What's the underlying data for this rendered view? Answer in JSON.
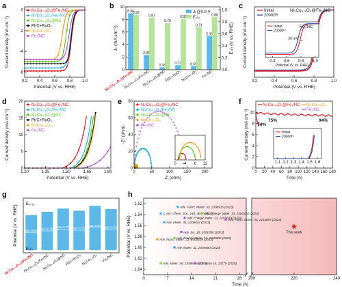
{
  "figure": {
    "panel_labels": [
      "a",
      "b",
      "c",
      "d",
      "e",
      "f",
      "g",
      "h"
    ]
  },
  "chart_data": [
    {
      "panel": "a",
      "type": "line",
      "xlabel": "Potential (V vs. RHE)",
      "ylabel": "Current density (mA cm⁻²)",
      "xlim": [
        0.2,
        1.0
      ],
      "ylim": [
        -6.5,
        0.3
      ],
      "xticks": [
        0.2,
        0.4,
        0.6,
        0.8,
        1.0
      ],
      "yticks": [
        -6,
        -4,
        -2,
        0
      ],
      "legend_position": "top-left",
      "series": [
        {
          "name": "Ni₁Co₃.₈O₄@Fe₁/NC",
          "color": "#d9141a",
          "marker": "circle",
          "onset": 0.86,
          "limit": -5.9,
          "width": 0.09
        },
        {
          "name": "Ni₁Co₃.₈O₄/Fe₁/NC",
          "color": "#1fa7e0",
          "marker": "triangle",
          "onset": 0.85,
          "limit": -5.6,
          "width": 0.09
        },
        {
          "name": "Ni₁Co₃.₈O₄@NC",
          "color": "#58c41e",
          "marker": "square",
          "onset": 0.79,
          "limit": -5.0,
          "width": 0.09
        },
        {
          "name": "Pt/C+RuO₂",
          "color": "#111111",
          "marker": "circle",
          "onset": 0.86,
          "limit": -5.2,
          "width": 0.08
        },
        {
          "name": "Ni₁Co₃.₈O₄",
          "color": "#f29a16",
          "marker": "circle",
          "onset": 0.74,
          "limit": -4.8,
          "width": 0.1
        },
        {
          "name": "Fe₁/NC",
          "color": "#b94fd6",
          "marker": "circle",
          "onset": 0.83,
          "limit": -4.8,
          "width": 0.1
        }
      ]
    },
    {
      "panel": "b",
      "type": "bar",
      "categories": [
        "Ni₁Co₃.₈O₄@Fe₁/NC",
        "Ni₁Co₃.₈O₄/Fe₁/NC",
        "Ni₁Co₃.₈O₄@NC",
        "Pt/C+RuO₂",
        "Ni₁Co₃.₈O₄",
        "Fe₁/NC"
      ],
      "series": [
        {
          "name": "Jₖ@0.9 V",
          "color": "#5bb8e8",
          "values": [
            8.96,
            2.35,
            0.38,
            0.73,
            0.56,
            5.35
          ],
          "labels": [
            "8.96",
            "2.35",
            "0.38",
            "0.73",
            "0.56",
            "5.35"
          ]
        },
        {
          "name": "E₁/₂",
          "color": "#b5e39a",
          "values": [
            0.92,
            0.87,
            0.78,
            0.85,
            0.71,
            0.88
          ],
          "labels": [
            "0.92",
            "0.87",
            "0.78",
            "0.85",
            "0.71",
            "0.88"
          ]
        }
      ],
      "ylabel_left": "Jₖ (mA cm⁻²)",
      "ylabel_right": "E₁/₂ (V vs. RHE)",
      "ylim_left": [
        0,
        10
      ],
      "ylim_right": [
        0,
        1.05
      ],
      "highlight_category_color": "#d9141a"
    },
    {
      "panel": "c",
      "type": "line",
      "title": "Ni₁Co₃.₈O₄@Fe₁/NC",
      "xlabel": "Potential (V vs. RHE)",
      "ylabel": "Current density (mA cm⁻²)",
      "xlim": [
        0.2,
        1.0
      ],
      "ylim": [
        -6.5,
        0.3
      ],
      "xticks": [
        0.2,
        0.4,
        0.6,
        0.8,
        1.0
      ],
      "series": [
        {
          "name": "Initial",
          "color": "#d9141a",
          "onset": 0.86,
          "limit": -5.9,
          "width": 0.09
        },
        {
          "name": "20000ᵗʰ",
          "color": "#1f3fa8",
          "onset": 0.85,
          "limit": -5.8,
          "width": 0.09
        }
      ],
      "inset": {
        "title": "Fe₁/NC",
        "xlabel": "Potential (V vs. RHE)",
        "xticks": [
          0.4,
          0.6,
          0.8,
          1.0
        ],
        "annotation": "26 mV",
        "series": [
          {
            "name": "Initial",
            "color": "#d9141a",
            "onset": 0.83,
            "limit": -5.0,
            "width": 0.1
          },
          {
            "name": "20000ᵗʰ",
            "color": "#1f3fa8",
            "onset": 0.8,
            "limit": -4.8,
            "width": 0.1
          }
        ]
      }
    },
    {
      "panel": "d",
      "type": "line",
      "xlabel": "Potential (V vs. RHE)",
      "ylabel": "Current density (mA cm⁻²)",
      "xlim": [
        1.2,
        1.82
      ],
      "ylim": [
        0,
        20
      ],
      "xticks": [
        1.2,
        1.35,
        1.5,
        1.65,
        1.8
      ],
      "yticks": [
        0,
        5,
        10,
        15,
        20
      ],
      "legend_position": "top-left",
      "series": [
        {
          "name": "Ni₁Co₃.₈O₄@Fe₁/NC",
          "color": "#d9141a",
          "marker": "circle",
          "onset": 1.47,
          "rise": 0.058
        },
        {
          "name": "Ni₁Co₃.₈O₄/Fe₁/NC",
          "color": "#1fa7e0",
          "marker": "triangle",
          "onset": 1.53,
          "rise": 0.05
        },
        {
          "name": "Ni₁Co₃.₈O₄@NC",
          "color": "#58c41e",
          "marker": "square",
          "onset": 1.55,
          "rise": 0.048
        },
        {
          "name": "Pt/C+RuO₂",
          "color": "#111111",
          "marker": "circle",
          "onset": 1.55,
          "rise": 0.052
        },
        {
          "name": "Ni₁Co₃.₈O₄",
          "color": "#f29a16",
          "marker": "circle",
          "onset": 1.56,
          "rise": 0.05
        },
        {
          "name": "Fe₁/NC",
          "color": "#b94fd6",
          "marker": "circle",
          "onset": 1.62,
          "rise": 0.09
        }
      ]
    },
    {
      "panel": "e",
      "type": "scatter",
      "xlabel": "Z′ (ohm)",
      "ylabel": "-Z″ (ohm)",
      "xlim": [
        0,
        220
      ],
      "ylim": [
        0,
        80
      ],
      "xticks": [
        0,
        50,
        100,
        150,
        200
      ],
      "yticks": [
        0,
        20,
        40,
        60,
        80
      ],
      "series": [
        {
          "name": "Ni₁Co₃.₈O₄@Fe₁/NC",
          "color": "#d9141a",
          "r0": 1.2,
          "diameter": 3.2
        },
        {
          "name": "Ni₁Co₃.₈O₄/Fe₁/NC",
          "color": "#1fa7e0",
          "r0": 1.0,
          "diameter": 48
        },
        {
          "name": "Ni₁Co₃.₈O₄@NC",
          "color": "#58c41e",
          "r0": 1.5,
          "diameter": 6.5
        },
        {
          "name": "Ni₁Co₃.₈O₄",
          "color": "#f29a16",
          "r0": 1.8,
          "diameter": 8.5
        },
        {
          "name": "Fe₁/NC",
          "color": "#b94fd6",
          "r0": 1.0,
          "diameter": 138
        }
      ],
      "inset": {
        "xticks": [
          0,
          4,
          8,
          12
        ],
        "xlim": [
          0,
          12
        ],
        "ylim": [
          0,
          6
        ]
      }
    },
    {
      "panel": "f",
      "type": "line",
      "xlabel": "Time (h)",
      "ylabel": "Current density (mA cm⁻²)",
      "xlim": [
        0,
        180
      ],
      "ylim": [
        0,
        12
      ],
      "xticks": [
        0,
        20,
        40,
        60,
        80,
        100,
        120,
        140,
        160,
        180
      ],
      "yticks": [
        0,
        2,
        4,
        6,
        8,
        10
      ],
      "series": [
        {
          "name": "Ni₁Co₃.₈O₄@Fe₁/NC",
          "color": "#d9141a",
          "start": 10,
          "end": 9.4,
          "duration": 180
        },
        {
          "name": "Ni₁Co₃.₈O₄",
          "color": "#f29a16",
          "start": 10,
          "end": 7.5,
          "duration": 11
        },
        {
          "name": "Fe₁/NC",
          "color": "#b94fd6",
          "start": 10,
          "end": 7.4,
          "duration": 8
        }
      ],
      "annotations": [
        "74%",
        "75%",
        "94%"
      ],
      "inset": {
        "xticks": [
          1.1,
          1.2,
          1.3,
          1.4,
          1.5,
          1.6
        ],
        "xlim": [
          1.05,
          1.65
        ],
        "series": [
          {
            "name": "Initial",
            "color": "#d9141a",
            "onset": 1.48
          },
          {
            "name": "20000ᵗʰ",
            "color": "#1f3fa8",
            "onset": 1.49
          }
        ]
      }
    },
    {
      "panel": "g",
      "type": "bar",
      "ylabel": "Potential (V vs. RHE)",
      "categories": [
        "Ni₁Co₃.₈O₄@Fe₁/NC",
        "Ni₁Co₃.₈O₄/Fe₁/NC",
        "Ni₁Co₃.₈O₄@NC",
        "Pt/C+RuO₂",
        "Ni₁Co₃.₈O₄",
        "Fe₁/NC"
      ],
      "values": [
        0.64,
        0.7,
        0.76,
        0.72,
        0.81,
        0.75
      ],
      "labels": [
        "ΔE=0.64",
        "ΔE=0.70",
        "ΔE=0.76",
        "ΔE=0.72",
        "ΔE=0.81",
        "ΔE=0.75"
      ],
      "ej10_label": "Eⱼ₌₁₀",
      "e12_label": "E₁/₂",
      "color": "#5bb8e8",
      "highlight_category_color": "#d9141a"
    },
    {
      "panel": "h",
      "type": "scatter",
      "xlabel": "Time (h)",
      "ylabel": "Potential (V vs. RHE)",
      "ylim": [
        1.65,
        1.51
      ],
      "yticks": [
        1.52,
        1.54,
        1.56,
        1.58,
        1.6,
        1.62,
        1.64
      ],
      "xbreak_left": [
        0,
        30
      ],
      "xbreak_right": [
        200,
        240
      ],
      "xticks": [
        0,
        7,
        14,
        21,
        28,
        200,
        220,
        240
      ],
      "points": [
        {
          "x": 10,
          "y": 1.526,
          "color": "#3fb4e8",
          "label": "Adv. Funct. Mater. 33, 2300915 (2023)"
        },
        {
          "x": 5,
          "y": 1.538,
          "color": "#3fb4e8",
          "label": "J. Am. Chem. Soc. 145, 3647 (2023)"
        },
        {
          "x": 17,
          "y": 1.538,
          "color": "#7fd34a",
          "label": "Adv. Energy Mater. 13, 2300328 (2023)"
        },
        {
          "x": 12,
          "y": 1.546,
          "color": "#b94fd6",
          "label": "Adv. Energy Mater. 13, 2203609 (2023)"
        },
        {
          "x": 24,
          "y": 1.549,
          "color": "#b94fd6",
          "label": "Adv. Funct. Mater. 33, 2213857 (2023)"
        },
        {
          "x": 6,
          "y": 1.554,
          "color": "#3fb4e8",
          "label": "Adv. Mater. 35, 2206644 (2023)"
        },
        {
          "x": 11,
          "y": 1.572,
          "color": "#b94fd6",
          "label": "Adv. Sci. 10, 2301656 (2023)"
        },
        {
          "x": 4,
          "y": 1.585,
          "color": "#f29a16",
          "label": "Adv. Funct. Mater. 33, 2300419 (2023)"
        },
        {
          "x": 9,
          "y": 1.583,
          "color": "#7fd34a",
          "label": "Adv. Energy Mater. 12, 2202884 (2022)"
        },
        {
          "x": 9,
          "y": 1.6,
          "color": "#1fa7e0",
          "label": "Adv. Mater. 32, 2004900 (2020)"
        },
        {
          "x": 5,
          "y": 1.629,
          "color": "#7fd34a",
          "label": "Adv. Mater. 35, 2209648 (2023)"
        },
        {
          "x": 15,
          "y": 1.629,
          "color": "#b94fd6",
          "label": "ACS Nano 14, 13279 (2020)"
        }
      ],
      "this_work": {
        "x": 220,
        "y": 1.562,
        "color": "#e8161b",
        "label": "This work"
      }
    }
  ]
}
